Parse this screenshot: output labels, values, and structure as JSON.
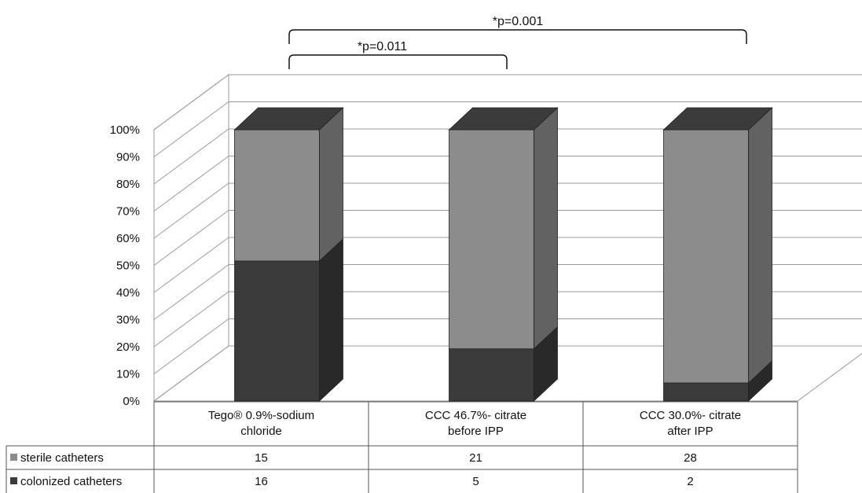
{
  "chart_data": {
    "type": "bar",
    "stacked": true,
    "three_d": true,
    "categories": [
      [
        "Tego® 0.9%-sodium",
        "chloride"
      ],
      [
        "CCC 46.7%- citrate",
        "before IPP"
      ],
      [
        "CCC 30.0%- citrate",
        "after IPP"
      ]
    ],
    "series": [
      {
        "name": "colonized catheters",
        "values": [
          16,
          5,
          2
        ],
        "color": "#3b3b3b"
      },
      {
        "name": "sterile catheters",
        "values": [
          15,
          21,
          28
        ],
        "color": "#8c8c8c"
      }
    ],
    "y_axis": {
      "ticks": [
        "0%",
        "10%",
        "20%",
        "30%",
        "40%",
        "50%",
        "60%",
        "70%",
        "80%",
        "90%",
        "100%"
      ],
      "ylim": [
        0,
        100
      ],
      "unit": "percent"
    },
    "annotations": [
      {
        "text": "*p=0.011",
        "from_category": 0,
        "to_category": 1
      },
      {
        "text": "*p=0.001",
        "from_category": 0,
        "to_category": 2
      }
    ],
    "data_table": true,
    "grid": true
  }
}
